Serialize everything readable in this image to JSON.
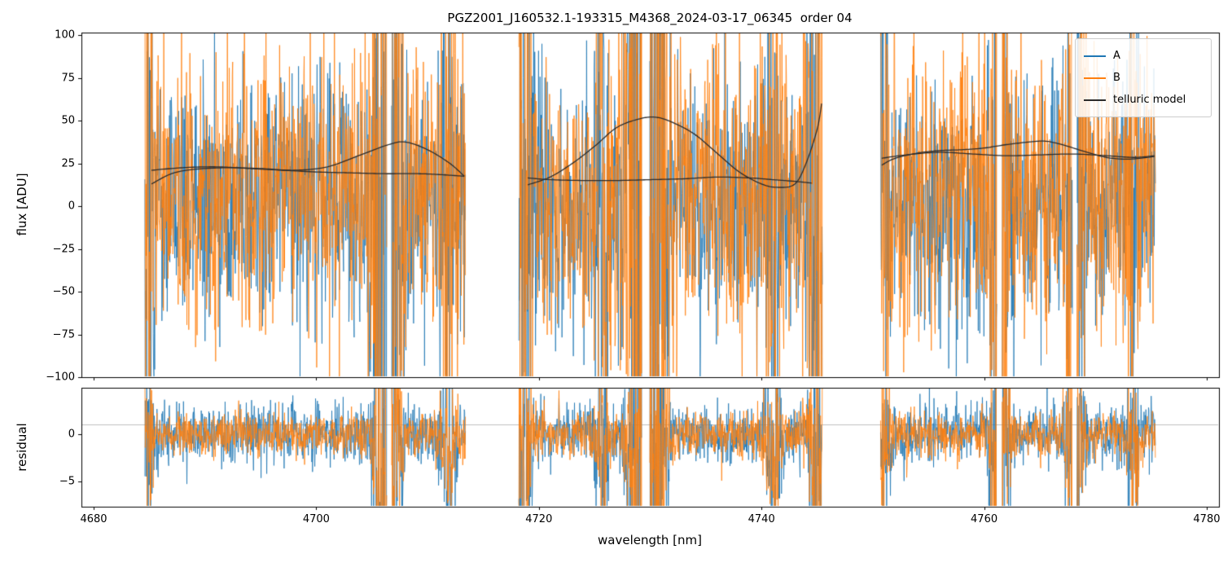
{
  "legend": {
    "items": [
      {
        "label": "A",
        "color": "#1f77b4"
      },
      {
        "label": "B",
        "color": "#ff7f0e"
      },
      {
        "label": "telluric model",
        "color": "#2b2b2b"
      }
    ]
  },
  "chart_data": {
    "type": "line",
    "title": "PGZ2001_J160532.1-193315_M4368_2024-03-17_06345  order 04",
    "xlabel": "wavelength [nm]",
    "xlim": [
      4678.9,
      4781.1
    ],
    "xticks": [
      {
        "v": 4680,
        "label": "4680"
      },
      {
        "v": 4700,
        "label": "4700"
      },
      {
        "v": 4720,
        "label": "4720"
      },
      {
        "v": 4740,
        "label": "4740"
      },
      {
        "v": 4760,
        "label": "4760"
      },
      {
        "v": 4780,
        "label": "4780"
      }
    ],
    "flux_panel": {
      "ylabel": "flux [ADU]",
      "ylim": [
        -100,
        101.5
      ],
      "yticks": [
        {
          "v": 100,
          "label": "100"
        },
        {
          "v": 75,
          "label": "75"
        },
        {
          "v": 50,
          "label": "50"
        },
        {
          "v": 25,
          "label": "25"
        },
        {
          "v": 0,
          "label": "0"
        },
        {
          "v": -25,
          "label": "−25"
        },
        {
          "v": -50,
          "label": "−50"
        },
        {
          "v": -75,
          "label": "−75"
        },
        {
          "v": -100,
          "label": "−100"
        }
      ]
    },
    "residual_panel": {
      "ylabel": "residual",
      "ylim": [
        -7.7,
        4.9
      ],
      "yticks": [
        {
          "v": 0,
          "label": "0"
        },
        {
          "v": -5,
          "label": "−5"
        }
      ],
      "hline_y": 1.0,
      "hline_color": "#9a9a9a"
    },
    "segments": [
      {
        "range": [
          4684.6,
          4713.4
        ]
      },
      {
        "range": [
          4718.2,
          4745.5
        ]
      },
      {
        "range": [
          4750.7,
          4775.4
        ]
      }
    ],
    "gaps": [
      [
        4706.35,
        4706.75
      ],
      [
        4729.25,
        4729.95
      ],
      [
        4761.15,
        4761.6
      ],
      [
        4767.95,
        4768.3
      ]
    ],
    "features": [
      {
        "c": 4684.9,
        "w": 0.3,
        "b": 1.5
      },
      {
        "c": 4706.0,
        "w": 0.55,
        "b": 5
      },
      {
        "c": 4707.3,
        "w": 0.35,
        "b": 2.5
      },
      {
        "c": 4711.8,
        "w": 0.5,
        "b": 1.5
      },
      {
        "c": 4718.6,
        "w": 0.6,
        "b": 2.5
      },
      {
        "c": 4725.6,
        "w": 0.35,
        "b": 2
      },
      {
        "c": 4729.2,
        "w": 0.7,
        "b": 6
      },
      {
        "c": 4730.8,
        "w": 0.5,
        "b": 4
      },
      {
        "c": 4741.0,
        "w": 0.5,
        "b": 2
      },
      {
        "c": 4745.0,
        "w": 0.5,
        "b": 4
      },
      {
        "c": 4751.0,
        "w": 0.4,
        "b": 1.5
      },
      {
        "c": 4761.4,
        "w": 0.5,
        "b": 4
      },
      {
        "c": 4768.1,
        "w": 0.45,
        "b": 3.5
      },
      {
        "c": 4773.3,
        "w": 0.35,
        "b": 2
      }
    ],
    "series": [
      {
        "name": "A",
        "color": "#1f77b4",
        "flux_mean": 3,
        "flux_std": 36,
        "res_std": 1.5,
        "seed": 101
      },
      {
        "name": "B",
        "color": "#ff7f0e",
        "flux_mean": 8,
        "flux_std": 40,
        "res_std": 1.2,
        "seed": 202
      }
    ],
    "sample_step_nm": 0.034,
    "model_color": "#2b2b2b",
    "telluric_curves": [
      [
        [
          4685.2,
          13
        ],
        [
          4687,
          19
        ],
        [
          4689,
          21.5
        ],
        [
          4692,
          22.5
        ],
        [
          4695,
          22
        ],
        [
          4698,
          21
        ],
        [
          4701,
          23
        ],
        [
          4704,
          30
        ],
        [
          4706.5,
          36
        ],
        [
          4708,
          37.5
        ],
        [
          4710,
          33
        ],
        [
          4712,
          25
        ],
        [
          4713.3,
          17.5
        ]
      ],
      [
        [
          4685.2,
          21
        ],
        [
          4688,
          22.5
        ],
        [
          4691,
          23
        ],
        [
          4694,
          22
        ],
        [
          4697,
          21
        ],
        [
          4700,
          20
        ],
        [
          4703,
          19.5
        ],
        [
          4706,
          19
        ],
        [
          4709,
          19
        ],
        [
          4711,
          18.5
        ],
        [
          4713.3,
          17.5
        ]
      ],
      [
        [
          4719,
          12.5
        ],
        [
          4721,
          17
        ],
        [
          4723,
          25
        ],
        [
          4725,
          35
        ],
        [
          4727,
          46
        ],
        [
          4729,
          51
        ],
        [
          4730.5,
          52
        ],
        [
          4732,
          49
        ],
        [
          4734,
          42
        ],
        [
          4736,
          31
        ],
        [
          4738,
          20
        ],
        [
          4740,
          13
        ],
        [
          4741.5,
          11
        ],
        [
          4743,
          13
        ],
        [
          4744,
          25
        ],
        [
          4745,
          45
        ],
        [
          4745.4,
          60
        ]
      ],
      [
        [
          4719,
          16.5
        ],
        [
          4721,
          15.5
        ],
        [
          4724,
          15
        ],
        [
          4727,
          15
        ],
        [
          4730,
          15.5
        ],
        [
          4733,
          16
        ],
        [
          4736,
          17
        ],
        [
          4739,
          16.5
        ],
        [
          4741,
          15.5
        ],
        [
          4743,
          14.5
        ],
        [
          4744.5,
          13.5
        ]
      ],
      [
        [
          4750.8,
          24
        ],
        [
          4752,
          28
        ],
        [
          4754,
          31
        ],
        [
          4756,
          32.5
        ],
        [
          4758,
          33
        ],
        [
          4760,
          34
        ],
        [
          4762,
          36
        ],
        [
          4764,
          37.5
        ],
        [
          4765.5,
          38
        ],
        [
          4767,
          36
        ],
        [
          4769,
          32
        ],
        [
          4771,
          28.5
        ],
        [
          4773,
          27.5
        ],
        [
          4775.3,
          29
        ]
      ],
      [
        [
          4750.8,
          28
        ],
        [
          4753,
          30
        ],
        [
          4756,
          31.5
        ],
        [
          4759,
          30.5
        ],
        [
          4762,
          29.5
        ],
        [
          4765,
          30
        ],
        [
          4768,
          30.5
        ],
        [
          4771,
          29.5
        ],
        [
          4773.5,
          28.5
        ],
        [
          4775.3,
          29.5
        ]
      ]
    ]
  }
}
